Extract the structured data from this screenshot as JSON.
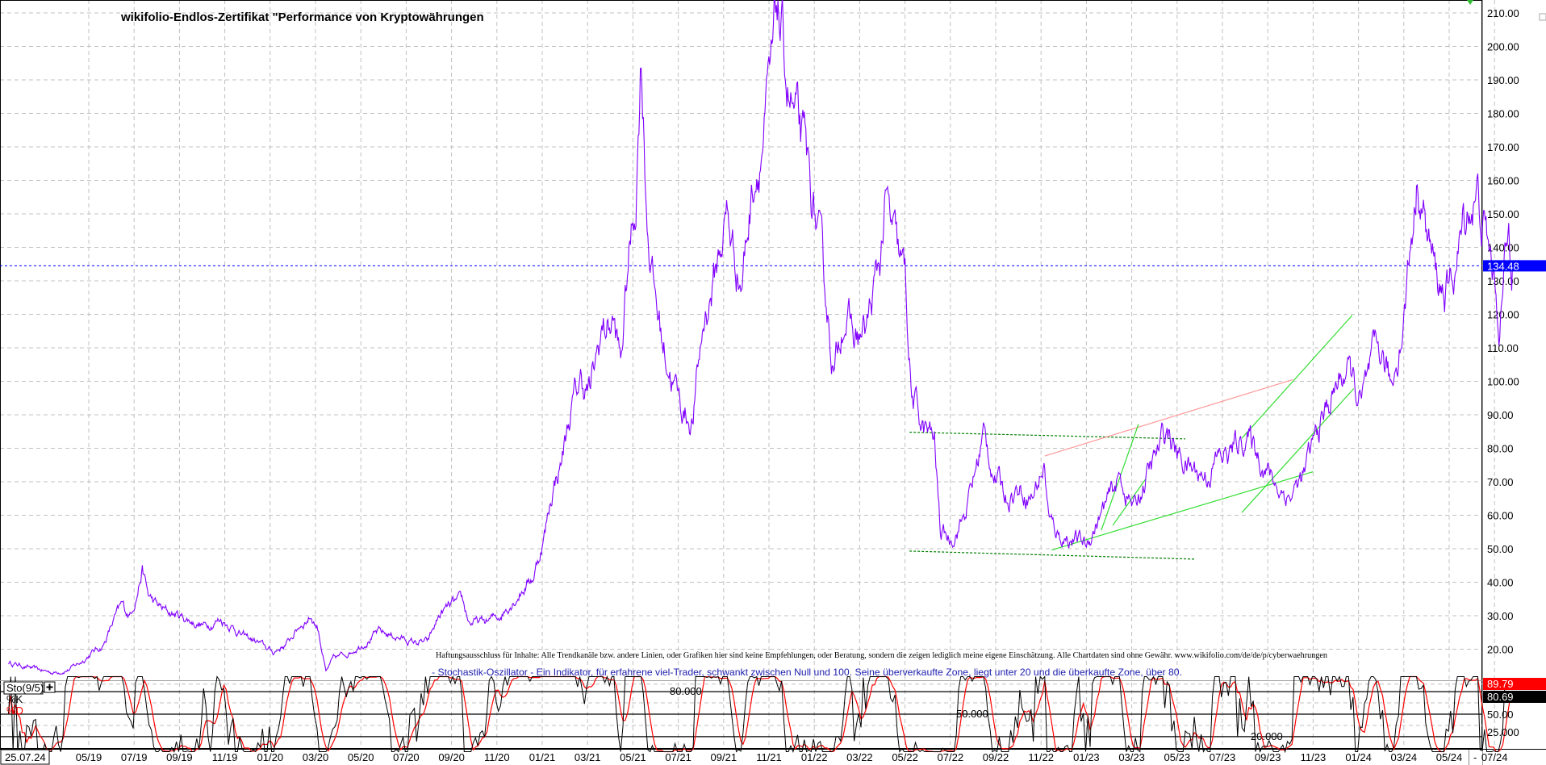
{
  "chart_data": [
    {
      "type": "line",
      "title": "wikifolio-Endlos-Zertifikat \"Performance von Kryptowährungen",
      "ylim": [
        20,
        210
      ],
      "y_ticks": [
        "20.00",
        "30.00",
        "40.00",
        "50.00",
        "60.00",
        "70.00",
        "80.00",
        "90.00",
        "100.00",
        "110.00",
        "120.00",
        "130.00",
        "140.00",
        "150.00",
        "160.00",
        "170.00",
        "180.00",
        "190.00",
        "200.00",
        "210.00"
      ],
      "x_ticks": [
        "05/19",
        "07/19",
        "09/19",
        "11/19",
        "01/20",
        "03/20",
        "05/20",
        "07/20",
        "09/20",
        "11/20",
        "01/21",
        "03/21",
        "05/21",
        "07/21",
        "09/21",
        "11/21",
        "01/22",
        "03/22",
        "05/22",
        "07/22",
        "09/22",
        "11/22",
        "01/23",
        "03/23",
        "05/23",
        "07/23",
        "09/23",
        "11/23",
        "01/24",
        "03/24",
        "05/24",
        "07/24"
      ],
      "x_tick_dates": [
        "2019-05-01",
        "2019-07-01",
        "2019-09-01",
        "2019-11-01",
        "2020-01-01",
        "2020-03-01",
        "2020-05-01",
        "2020-07-01",
        "2020-09-01",
        "2020-11-01",
        "2021-01-01",
        "2021-03-01",
        "2021-05-01",
        "2021-07-01",
        "2021-09-01",
        "2021-11-01",
        "2022-01-01",
        "2022-03-01",
        "2022-05-01",
        "2022-07-01",
        "2022-09-01",
        "2022-11-01",
        "2023-01-01",
        "2023-03-01",
        "2023-05-01",
        "2023-07-01",
        "2023-09-01",
        "2023-11-01",
        "2024-01-01",
        "2024-03-01",
        "2024-05-01",
        "2024-07-01"
      ],
      "cursor_date": "25.07.24",
      "grid": true,
      "last_price": "134.48",
      "last_price_value": 134.48,
      "colors": {
        "price": "#8000ff",
        "last_price_box": "#0000ff",
        "channel_dashed": "#008000",
        "trend_green": "#33dd33",
        "trend_pink": "#ff9999"
      },
      "series": [
        {
          "points": [
            [
              "2019-01-15",
              16
            ],
            [
              "2019-02-05",
              15
            ],
            [
              "2019-02-20",
              14
            ],
            [
              "2019-03-15",
              13
            ],
            [
              "2019-04-05",
              14
            ],
            [
              "2019-04-20",
              16
            ],
            [
              "2019-05-05",
              19
            ],
            [
              "2019-05-20",
              21
            ],
            [
              "2019-06-05",
              29
            ],
            [
              "2019-06-15",
              33
            ],
            [
              "2019-06-25",
              30
            ],
            [
              "2019-07-05",
              37
            ],
            [
              "2019-07-12",
              44
            ],
            [
              "2019-07-20",
              36
            ],
            [
              "2019-08-01",
              33
            ],
            [
              "2019-08-15",
              31
            ],
            [
              "2019-09-01",
              30
            ],
            [
              "2019-09-20",
              28
            ],
            [
              "2019-10-05",
              27
            ],
            [
              "2019-10-25",
              29
            ],
            [
              "2019-11-10",
              27
            ],
            [
              "2019-11-25",
              24
            ],
            [
              "2019-12-15",
              22
            ],
            [
              "2020-01-05",
              19
            ],
            [
              "2020-01-25",
              22
            ],
            [
              "2020-02-10",
              27
            ],
            [
              "2020-02-25",
              30
            ],
            [
              "2020-03-05",
              26
            ],
            [
              "2020-03-15",
              13
            ],
            [
              "2020-03-25",
              17
            ],
            [
              "2020-04-15",
              19
            ],
            [
              "2020-05-05",
              22
            ],
            [
              "2020-05-25",
              25
            ],
            [
              "2020-06-15",
              24
            ],
            [
              "2020-07-10",
              22
            ],
            [
              "2020-07-30",
              22
            ],
            [
              "2020-08-15",
              30
            ],
            [
              "2020-08-30",
              33
            ],
            [
              "2020-09-15",
              34
            ],
            [
              "2020-09-25",
              28
            ],
            [
              "2020-10-15",
              28
            ],
            [
              "2020-11-05",
              30
            ],
            [
              "2020-11-20",
              34
            ],
            [
              "2020-12-05",
              38
            ],
            [
              "2020-12-20",
              42
            ],
            [
              "2021-01-05",
              55
            ],
            [
              "2021-01-15",
              68
            ],
            [
              "2021-01-25",
              75
            ],
            [
              "2021-02-10",
              92
            ],
            [
              "2021-02-22",
              100
            ],
            [
              "2021-03-05",
              97
            ],
            [
              "2021-03-20",
              115
            ],
            [
              "2021-04-05",
              118
            ],
            [
              "2021-04-15",
              105
            ],
            [
              "2021-04-25",
              135
            ],
            [
              "2021-05-05",
              155
            ],
            [
              "2021-05-12",
              200
            ],
            [
              "2021-05-20",
              150
            ],
            [
              "2021-05-28",
              130
            ],
            [
              "2021-06-10",
              112
            ],
            [
              "2021-06-25",
              100
            ],
            [
              "2021-07-05",
              92
            ],
            [
              "2021-07-20",
              88
            ],
            [
              "2021-08-05",
              118
            ],
            [
              "2021-08-20",
              132
            ],
            [
              "2021-09-05",
              150
            ],
            [
              "2021-09-15",
              138
            ],
            [
              "2021-09-25",
              130
            ],
            [
              "2021-10-10",
              160
            ],
            [
              "2021-10-25",
              175
            ],
            [
              "2021-11-05",
              190
            ],
            [
              "2021-11-12",
              212
            ],
            [
              "2021-11-25",
              190
            ],
            [
              "2021-12-05",
              178
            ],
            [
              "2021-12-20",
              165
            ],
            [
              "2022-01-05",
              145
            ],
            [
              "2022-01-20",
              118
            ],
            [
              "2022-01-28",
              102
            ],
            [
              "2022-02-10",
              122
            ],
            [
              "2022-02-25",
              112
            ],
            [
              "2022-03-10",
              115
            ],
            [
              "2022-03-28",
              135
            ],
            [
              "2022-04-05",
              153
            ],
            [
              "2022-04-20",
              138
            ],
            [
              "2022-05-01",
              130
            ],
            [
              "2022-05-10",
              95
            ],
            [
              "2022-05-25",
              86
            ],
            [
              "2022-06-10",
              82
            ],
            [
              "2022-06-18",
              55
            ],
            [
              "2022-07-01",
              53
            ],
            [
              "2022-07-20",
              60
            ],
            [
              "2022-08-01",
              70
            ],
            [
              "2022-08-15",
              84
            ],
            [
              "2022-08-30",
              72
            ],
            [
              "2022-09-15",
              66
            ],
            [
              "2022-10-01",
              68
            ],
            [
              "2022-10-20",
              66
            ],
            [
              "2022-11-05",
              75
            ],
            [
              "2022-11-12",
              58
            ],
            [
              "2022-11-25",
              54
            ],
            [
              "2022-12-15",
              53
            ],
            [
              "2023-01-01",
              51
            ],
            [
              "2023-01-15",
              58
            ],
            [
              "2023-01-30",
              64
            ],
            [
              "2023-02-15",
              71
            ],
            [
              "2023-03-05",
              62
            ],
            [
              "2023-03-20",
              71
            ],
            [
              "2023-04-05",
              78
            ],
            [
              "2023-04-18",
              86
            ],
            [
              "2023-05-01",
              78
            ],
            [
              "2023-05-20",
              74
            ],
            [
              "2023-06-10",
              72
            ],
            [
              "2023-06-25",
              77
            ],
            [
              "2023-07-10",
              78
            ],
            [
              "2023-08-01",
              84
            ],
            [
              "2023-08-15",
              80
            ],
            [
              "2023-08-30",
              74
            ],
            [
              "2023-09-15",
              68
            ],
            [
              "2023-10-01",
              66
            ],
            [
              "2023-10-20",
              72
            ],
            [
              "2023-11-05",
              84
            ],
            [
              "2023-11-20",
              92
            ],
            [
              "2023-12-05",
              100
            ],
            [
              "2023-12-15",
              104
            ],
            [
              "2024-01-05",
              93
            ],
            [
              "2024-01-20",
              104
            ],
            [
              "2024-02-01",
              108
            ],
            [
              "2024-02-15",
              98
            ],
            [
              "2024-03-01",
              120
            ],
            [
              "2024-03-12",
              145
            ],
            [
              "2024-03-20",
              163
            ],
            [
              "2024-04-01",
              145
            ],
            [
              "2024-04-15",
              130
            ],
            [
              "2024-05-01",
              126
            ],
            [
              "2024-05-15",
              140
            ],
            [
              "2024-05-25",
              152
            ],
            [
              "2024-06-08",
              155
            ],
            [
              "2024-06-20",
              143
            ],
            [
              "2024-07-01",
              130
            ],
            [
              "2024-07-08",
              117
            ],
            [
              "2024-07-15",
              134
            ],
            [
              "2024-07-20",
              143
            ],
            [
              "2024-07-25",
              134.48
            ]
          ]
        }
      ],
      "annotations": {
        "channel_top_dashed": [
          [
            "2022-05-07",
            84.8
          ],
          [
            "2023-05-12",
            82.8
          ]
        ],
        "channel_bottom_dashed": [
          [
            "2022-05-07",
            49.3
          ],
          [
            "2023-05-24",
            46.9
          ]
        ],
        "trend_support_green": [
          [
            "2022-11-15",
            49.6
          ],
          [
            "2023-11-01",
            73.0
          ]
        ],
        "trend_resistance_pink": [
          [
            "2022-11-06",
            77.7
          ],
          [
            "2023-10-04",
            100.5
          ]
        ],
        "short_channel_upper": [
          [
            "2023-01-21",
            55.5
          ],
          [
            "2023-03-10",
            87.2
          ]
        ],
        "short_channel_lower": [
          [
            "2023-02-06",
            57.0
          ],
          [
            "2023-03-20",
            70.9
          ]
        ],
        "rising_channel_upper": [
          [
            "2023-07-27",
            83.0
          ],
          [
            "2023-12-23",
            119.7
          ]
        ],
        "rising_channel_lower": [
          [
            "2023-07-27",
            60.8
          ],
          [
            "2023-12-25",
            97.8
          ]
        ]
      },
      "disclaimer": "Haftungsausschluss für Inhalte: Alle Trendkanäle bzw. andere Linien, oder Grafiken hier sind keine Empfehlungen, oder Beratung, sondern die zeigen lediglich meine eigene Einschätzung. Alle Chartdaten sind ohne Gewähr.  www.wikifolio.com/de/de/p/cyberwaehrungen",
      "indicator_description": "- Stochastik-Oszillator - Ein Indikator, für erfahrene viel-Trader, schwankt zwischen Null und 100. Seine überverkaufte Zone, liegt unter 20 und die überkaufte Zone, über 80."
    },
    {
      "type": "line",
      "indicator": "Sto(9/5)",
      "ylim": [
        0,
        100
      ],
      "legend": [
        "%K",
        "%D"
      ],
      "colors": {
        "k": "#000000",
        "d": "#ff0000"
      },
      "levels": [
        80,
        50,
        20
      ],
      "level_labels": [
        "80.000",
        "50.000",
        "20.000"
      ],
      "y_ticks": [
        "50.00",
        "25.000"
      ],
      "last_k": "89.79",
      "last_d": "80.69",
      "last_k_value": 89.79,
      "last_d_value": 80.69
    }
  ],
  "misc": {
    "axis_collapse": "-"
  }
}
